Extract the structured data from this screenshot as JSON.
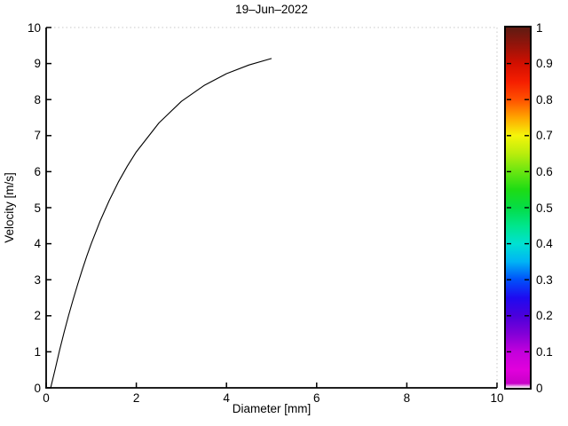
{
  "chart_data": {
    "type": "line",
    "title": "19–Jun–2022",
    "xlabel": "Diameter [mm]",
    "ylabel": "Velocity [m/s]",
    "xlim": [
      0,
      10
    ],
    "ylim": [
      0,
      10
    ],
    "grid": false,
    "x_ticks": {
      "values": [
        0,
        2,
        4,
        6,
        8,
        10
      ],
      "labels": [
        "0",
        "2",
        "4",
        "6",
        "8",
        "10"
      ]
    },
    "y_ticks": {
      "values": [
        0,
        1,
        2,
        3,
        4,
        5,
        6,
        7,
        8,
        9,
        10
      ],
      "labels": [
        "0",
        "1",
        "2",
        "3",
        "4",
        "5",
        "6",
        "7",
        "8",
        "9",
        "10"
      ]
    },
    "series": [
      {
        "name": "velocity-vs-diameter-curve",
        "color": "#000000",
        "x": [
          0.1,
          0.2,
          0.3,
          0.4,
          0.5,
          0.6,
          0.7,
          0.8,
          0.9,
          1.0,
          1.2,
          1.4,
          1.6,
          1.8,
          2.0,
          2.5,
          3.0,
          3.5,
          4.0,
          4.5,
          5.0
        ],
        "y": [
          0.0,
          0.52,
          1.05,
          1.55,
          2.02,
          2.46,
          2.88,
          3.27,
          3.65,
          4.0,
          4.64,
          5.2,
          5.71,
          6.15,
          6.55,
          7.35,
          7.95,
          8.39,
          8.72,
          8.96,
          9.14
        ]
      }
    ],
    "colorbar": {
      "min": 0,
      "max": 1,
      "ticks": {
        "values": [
          0,
          0.1,
          0.2,
          0.3,
          0.4,
          0.5,
          0.6,
          0.7,
          0.8,
          0.9,
          1
        ],
        "labels": [
          "0",
          "0.1",
          "0.2",
          "0.3",
          "0.4",
          "0.5",
          "0.6",
          "0.7",
          "0.8",
          "0.9",
          "1"
        ]
      },
      "gradient_stops": [
        {
          "pos": 0.0,
          "color": "#ffffff"
        },
        {
          "pos": 0.012,
          "color": "#c800c8"
        },
        {
          "pos": 0.05,
          "color": "#e100dc"
        },
        {
          "pos": 0.1,
          "color": "#c300dc"
        },
        {
          "pos": 0.15,
          "color": "#8200d7"
        },
        {
          "pos": 0.2,
          "color": "#4b00dc"
        },
        {
          "pos": 0.25,
          "color": "#1e0af0"
        },
        {
          "pos": 0.3,
          "color": "#0050fa"
        },
        {
          "pos": 0.35,
          "color": "#00b4f5"
        },
        {
          "pos": 0.4,
          "color": "#00e1d2"
        },
        {
          "pos": 0.45,
          "color": "#00e68c"
        },
        {
          "pos": 0.5,
          "color": "#05dc46"
        },
        {
          "pos": 0.55,
          "color": "#1edc14"
        },
        {
          "pos": 0.6,
          "color": "#69e611"
        },
        {
          "pos": 0.65,
          "color": "#b9ed0c"
        },
        {
          "pos": 0.7,
          "color": "#f5f50a"
        },
        {
          "pos": 0.75,
          "color": "#ffa500"
        },
        {
          "pos": 0.8,
          "color": "#ff5000"
        },
        {
          "pos": 0.85,
          "color": "#f51e00"
        },
        {
          "pos": 0.9,
          "color": "#d20f00"
        },
        {
          "pos": 0.95,
          "color": "#96140a"
        },
        {
          "pos": 1.0,
          "color": "#5f1b12"
        }
      ]
    },
    "style": {
      "axis_color": "#000000",
      "box_dotted_color": "#c8c8c8",
      "background": "#ffffff"
    }
  }
}
